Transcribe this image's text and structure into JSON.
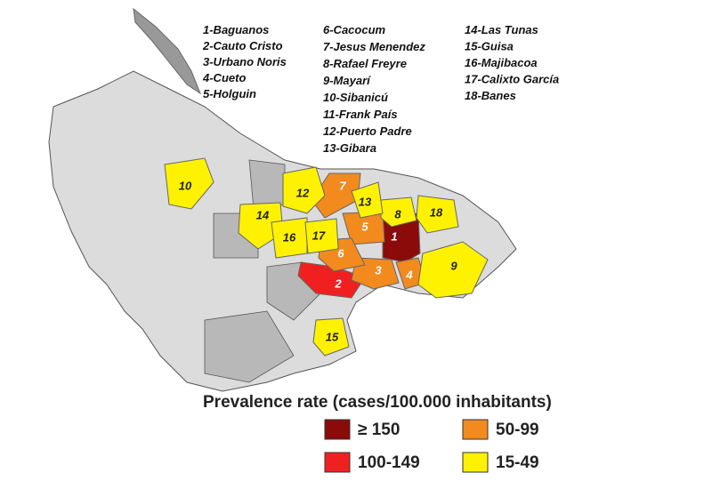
{
  "municipalities": [
    "1-Baguanos",
    "2-Cauto Cristo",
    "3-Urbano Noris",
    "4-Cueto",
    "5-Holguin",
    "6-Cacocum",
    "7-Jesus Menendez",
    "8-Rafael Freyre",
    "9-Mayarí",
    "10-Sibanicú",
    "11-Frank País",
    "12-Puerto Padre",
    "13-Gibara",
    "14-Las Tunas",
    "15-Guisa",
    "16-Majibacoa",
    "17-Calixto García",
    "18-Banes"
  ],
  "regions": [
    {
      "label": "1",
      "color": "#8b0a0a"
    },
    {
      "label": "2",
      "color": "#f02020"
    },
    {
      "label": "3",
      "color": "#f28a1e"
    },
    {
      "label": "4",
      "color": "#f28a1e"
    },
    {
      "label": "5",
      "color": "#f28a1e"
    },
    {
      "label": "6",
      "color": "#f28a1e"
    },
    {
      "label": "7",
      "color": "#f28a1e"
    },
    {
      "label": "8",
      "color": "#fff200"
    },
    {
      "label": "9",
      "color": "#fff200"
    },
    {
      "label": "10",
      "color": "#fff200"
    },
    {
      "label": "12",
      "color": "#fff200"
    },
    {
      "label": "13",
      "color": "#fff200"
    },
    {
      "label": "14",
      "color": "#fff200"
    },
    {
      "label": "15",
      "color": "#fff200"
    },
    {
      "label": "16",
      "color": "#fff200"
    },
    {
      "label": "17",
      "color": "#fff200"
    },
    {
      "label": "18",
      "color": "#fff200"
    }
  ],
  "legend": {
    "title": "Prevalence rate (cases/100.000 inhabitants)",
    "items": [
      {
        "label": "≥ 150",
        "color": "#8b0a0a"
      },
      {
        "label": "50-99",
        "color": "#f28a1e"
      },
      {
        "label": "100-149",
        "color": "#f02020"
      },
      {
        "label": "15-49",
        "color": "#fff200"
      }
    ]
  }
}
